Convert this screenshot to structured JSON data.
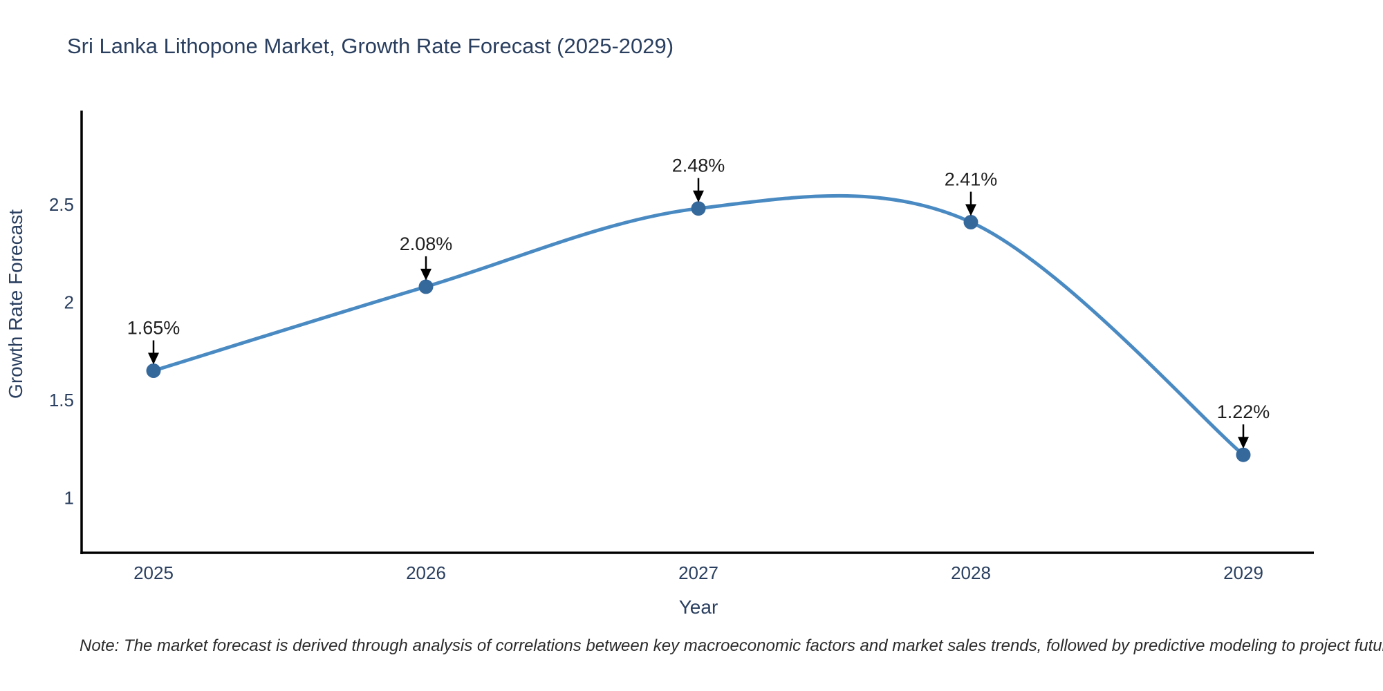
{
  "page": {
    "title": "Sri Lanka Lithopone Market, Growth Rate Forecast (2025-2029)",
    "note": "Note: The market forecast is derived through analysis of correlations between key macroeconomic factors and market sales trends, followed by predictive modeling to project future sales"
  },
  "chart_data": {
    "type": "line",
    "title": "Sri Lanka Lithopone Market, Growth Rate Forecast (2025-2029)",
    "xlabel": "Year",
    "ylabel": "Growth Rate Forecast",
    "categories": [
      "2025",
      "2026",
      "2027",
      "2028",
      "2029"
    ],
    "values": [
      1.65,
      2.08,
      2.48,
      2.41,
      1.22
    ],
    "point_labels": [
      "1.65%",
      "2.08%",
      "2.48%",
      "2.41%",
      "1.22%"
    ],
    "yticks": [
      "2.5",
      "2",
      "1.5",
      "1"
    ],
    "ylim": [
      0.72,
      2.98
    ],
    "xlim": [
      2024.74,
      2029.26
    ],
    "line_shape": "spline",
    "grid": false,
    "legend_position": "none",
    "colors": {
      "line": "#4a8ac2",
      "marker": "#35699c",
      "axis_line": "#000000",
      "title_text": "#2a3f5f",
      "axis_text": "#2a3f5f",
      "annotation_text": "#1f1f1f",
      "arrow": "#000000"
    }
  }
}
